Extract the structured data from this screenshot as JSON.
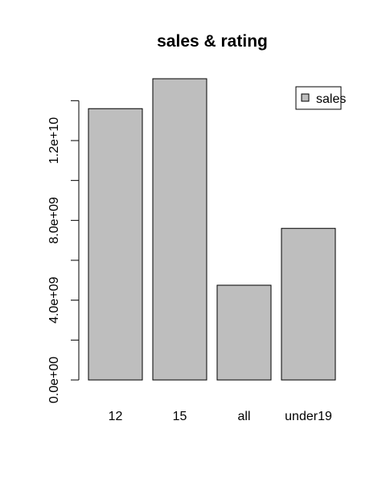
{
  "chart_data": {
    "type": "bar",
    "title": "sales & rating",
    "categories": [
      "12",
      "15",
      "all",
      "under19"
    ],
    "series": [
      {
        "name": "sales",
        "values": [
          13600000000,
          15100000000,
          4750000000,
          7600000000
        ]
      }
    ],
    "ylim": [
      0,
      15100000000
    ],
    "yticks": [
      0,
      2000000000,
      4000000000,
      6000000000,
      8000000000,
      10000000000,
      12000000000,
      14000000000
    ],
    "ytick_labels": [
      "0.0e+00",
      "4.0e+09",
      "8.0e+09",
      "1.2e+10"
    ],
    "labeled_ytick_values": [
      0,
      4000000000,
      8000000000,
      12000000000
    ],
    "legend": {
      "entries": [
        "sales"
      ],
      "position": "top-right"
    },
    "grid": false,
    "bar_color": "#bebebe",
    "border_color": "#000000"
  }
}
